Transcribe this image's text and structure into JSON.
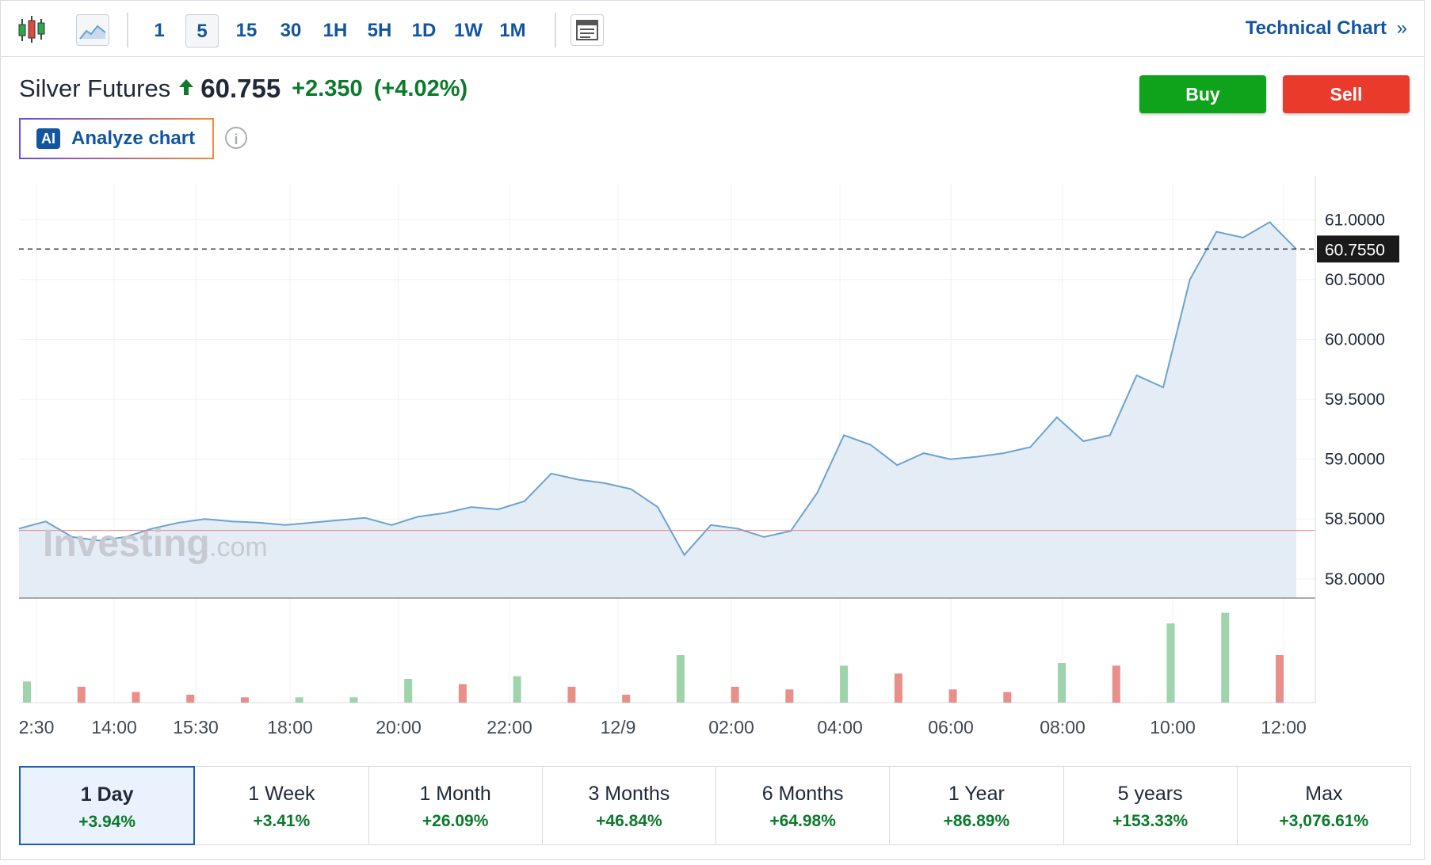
{
  "toolbar": {
    "intervals": [
      "1",
      "5",
      "15",
      "30",
      "1H",
      "5H",
      "1D",
      "1W",
      "1M"
    ],
    "active_interval": "5",
    "technical_chart_label": "Technical Chart",
    "technical_chart_chevron": "»"
  },
  "instrument": {
    "name": "Silver Futures",
    "direction_icon": "up-arrow-icon",
    "price": "60.755",
    "change": "+2.350",
    "change_pct": "(+4.02%)"
  },
  "actions": {
    "buy_label": "Buy",
    "sell_label": "Sell",
    "buy_color": "#0ea31a",
    "sell_color": "#ea3a2c"
  },
  "analyze": {
    "badge": "AI",
    "label": "Analyze chart",
    "info_glyph": "i"
  },
  "watermark": {
    "brand": "Investing",
    "suffix": ".com"
  },
  "chart_data": {
    "type": "area",
    "title": "",
    "y_tick_labels": [
      "61.0000",
      "60.5000",
      "60.0000",
      "59.5000",
      "59.0000",
      "58.5000",
      "58.0000"
    ],
    "ylim": [
      57.84,
      61.3
    ],
    "x_tick_labels": [
      "2:30",
      "14:00",
      "15:30",
      "18:00",
      "20:00",
      "22:00",
      "12/9",
      "02:00",
      "04:00",
      "06:00",
      "08:00",
      "10:00",
      "12:00"
    ],
    "current_price_label": "60.7550",
    "current_price": 60.755,
    "previous_close": 58.405,
    "line_color": "#6aa3cf",
    "fill_color": "#e4ecf6",
    "up_volume_color": "#9ed3ab",
    "down_volume_color": "#e88f8a",
    "series": [
      {
        "x": [
          "12:30",
          "13:00",
          "13:30",
          "14:00",
          "14:30",
          "15:00",
          "15:30",
          "16:00",
          "16:30",
          "17:00",
          "17:30",
          "18:00",
          "18:30",
          "19:00",
          "19:30",
          "20:00",
          "20:30",
          "21:00",
          "21:30",
          "22:00",
          "22:30",
          "23:00",
          "23:30",
          "12/9 00:00",
          "00:30",
          "01:00",
          "01:30",
          "02:00",
          "02:30",
          "03:00",
          "03:30",
          "04:00",
          "04:30",
          "05:00",
          "05:30",
          "06:00",
          "06:30",
          "07:00",
          "07:30",
          "08:00",
          "08:30",
          "09:00",
          "09:30",
          "10:00",
          "10:30",
          "11:00",
          "11:30",
          "12:00",
          "12:15"
        ],
        "y": [
          58.42,
          58.48,
          58.35,
          58.32,
          58.35,
          58.42,
          58.47,
          58.5,
          58.48,
          58.47,
          58.45,
          58.47,
          58.49,
          58.51,
          58.45,
          58.52,
          58.55,
          58.6,
          58.58,
          58.65,
          58.88,
          58.83,
          58.8,
          58.75,
          58.6,
          58.2,
          58.45,
          58.42,
          58.35,
          58.4,
          58.72,
          59.2,
          59.12,
          58.95,
          59.05,
          59.0,
          59.02,
          59.05,
          59.1,
          59.35,
          59.15,
          59.2,
          59.7,
          59.6,
          60.5,
          60.9,
          60.85,
          60.98,
          60.755
        ]
      }
    ],
    "volume": {
      "x": [
        "13:00",
        "14:00",
        "15:00",
        "16:00",
        "17:00",
        "18:00",
        "19:00",
        "20:00",
        "21:00",
        "22:00",
        "23:00",
        "00:00",
        "01:00",
        "02:00",
        "03:00",
        "04:00",
        "05:00",
        "06:00",
        "07:00",
        "08:00",
        "09:00",
        "10:00",
        "11:00",
        "12:00"
      ],
      "values": [
        8,
        6,
        4,
        3,
        2,
        2,
        2,
        9,
        7,
        10,
        6,
        3,
        18,
        6,
        5,
        14,
        11,
        5,
        4,
        15,
        14,
        30,
        34,
        18
      ]
    }
  },
  "periods": [
    {
      "label": "1 Day",
      "change": "+3.94%",
      "active": true
    },
    {
      "label": "1 Week",
      "change": "+3.41%"
    },
    {
      "label": "1 Month",
      "change": "+26.09%"
    },
    {
      "label": "3 Months",
      "change": "+46.84%"
    },
    {
      "label": "6 Months",
      "change": "+64.98%"
    },
    {
      "label": "1 Year",
      "change": "+86.89%"
    },
    {
      "label": "5 years",
      "change": "+153.33%"
    },
    {
      "label": "Max",
      "change": "+3,076.61%"
    }
  ]
}
